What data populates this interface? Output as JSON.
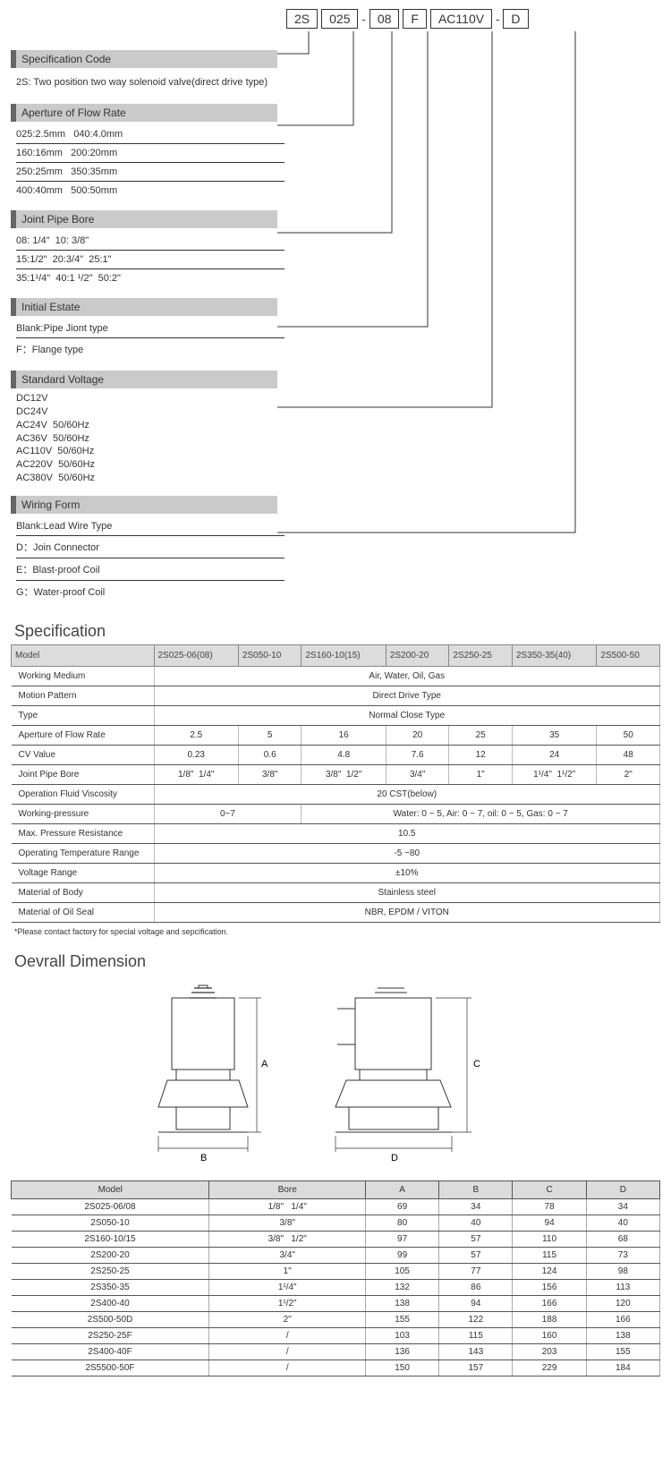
{
  "code_strip": {
    "b1": "2S",
    "b2": "025",
    "b3": "08",
    "b4": "F",
    "b5": "AC110V",
    "b6": "D",
    "sep": "-"
  },
  "sections": {
    "spec_code": {
      "title": "Specification Code",
      "line": "2S: Two position two way solenoid valve(direct drive type)"
    },
    "aperture": {
      "title": "Aperture of Flow Rate",
      "r1": "025:2.5mm   040:4.0mm",
      "r2": "160:16mm   200:20mm",
      "r3": "250:25mm   350:35mm",
      "r4": "400:40mm   500:50mm"
    },
    "joint": {
      "title": "Joint Pipe Bore",
      "r1": "08: 1/4\"  10: 3/8\"",
      "r2": "15:1/2\"  20:3/4\"  25:1\"",
      "r3": "35:1¹/4\"  40:1 ¹/2\"  50:2\""
    },
    "initial": {
      "title": "Initial Estate",
      "r1": "Blank:Pipe Jiont type",
      "r2": "F：Flange type"
    },
    "voltage": {
      "title": "Standard Voltage",
      "l1": "DC12V",
      "l2": "DC24V",
      "l3": "AC24V  50/60Hz",
      "l4": "AC36V  50/60Hz",
      "l5": "AC110V  50/60Hz",
      "l6": "AC220V  50/60Hz",
      "l7": "AC380V  50/60Hz"
    },
    "wiring": {
      "title": "Wiring Form",
      "r1": "Blank:Lead Wire Type",
      "r2": "D：Join Connector",
      "r3": "E：Blast-proof Coil",
      "r4": "G：Water-proof Coil"
    }
  },
  "spec_title": "Specification",
  "spec_table": {
    "hdr_model": "Model",
    "models": [
      "2S025-06(08)",
      "2S050-10",
      "2S160-10(15)",
      "2S200-20",
      "2S250-25",
      "2S350-35(40)",
      "2S500-50"
    ],
    "rows": {
      "wm": {
        "lbl": "Working Medium",
        "val": "Air, Water, Oil, Gas"
      },
      "mp": {
        "lbl": "Motion Pattern",
        "val": "Direct  Drive Type"
      },
      "ty": {
        "lbl": "Type",
        "val": "Normal Close Type"
      },
      "af": {
        "lbl": "Aperture of Flow Rate",
        "v": [
          "2.5",
          "5",
          "16",
          "20",
          "25",
          "35",
          "50"
        ]
      },
      "cv": {
        "lbl": "CV  Value",
        "v": [
          "0.23",
          "0.6",
          "4.8",
          "7.6",
          "12",
          "24",
          "48"
        ]
      },
      "jp": {
        "lbl": "Joint Pipe Bore",
        "v": [
          "1/8\"  1/4\"",
          "3/8\"",
          "3/8\"  1/2\"",
          "3/4\"",
          "1\"",
          "1¹/4\"  1¹/2\"",
          "2\""
        ]
      },
      "ofv": {
        "lbl": "Operation Fluid Viscosity",
        "val": "20  CST(below)"
      },
      "wp": {
        "lbl": "Working-pressure",
        "left": "0~7",
        "right": "Water: 0 ~ 5, Air: 0 ~ 7, oil: 0 ~ 5, Gas: 0 ~ 7"
      },
      "mpr": {
        "lbl": "Max. Pressure Resistance",
        "val": "10.5"
      },
      "otr": {
        "lbl": "Operating Temperature Range",
        "val": "-5 ~80"
      },
      "vr": {
        "lbl": "Voltage Range",
        "val": "±10%"
      },
      "mb": {
        "lbl": "Material of Body",
        "val": "Stainless steel"
      },
      "ms": {
        "lbl": "Material of Oil Seal",
        "val": "NBR,   EPDM / VITON"
      }
    }
  },
  "footnote": "*Please contact factory for special voltage and sepcification.",
  "dim_title": "Oevrall Dimension",
  "dim_labels": {
    "A": "A",
    "B": "B",
    "C": "C",
    "D": "D"
  },
  "dim_table": {
    "hdr": {
      "model": "Model",
      "bore": "Bore",
      "A": "A",
      "B": "B",
      "C": "C",
      "D": "D"
    },
    "rows": [
      {
        "m": "2S025-06/08",
        "b": "1/8\"   1/4\"",
        "A": "69",
        "B": "34",
        "C": "78",
        "D": "34"
      },
      {
        "m": "2S050-10",
        "b": "3/8\"",
        "A": "80",
        "B": "40",
        "C": "94",
        "D": "40"
      },
      {
        "m": "2S160-10/15",
        "b": "3/8\"   1/2\"",
        "A": "97",
        "B": "57",
        "C": "110",
        "D": "68"
      },
      {
        "m": "2S200-20",
        "b": "3/4\"",
        "A": "99",
        "B": "57",
        "C": "115",
        "D": "73"
      },
      {
        "m": "2S250-25",
        "b": "1\"",
        "A": "105",
        "B": "77",
        "C": "124",
        "D": "98"
      },
      {
        "m": "2S350-35",
        "b": "1¹/4\"",
        "A": "132",
        "B": "86",
        "C": "156",
        "D": "113"
      },
      {
        "m": "2S400-40",
        "b": "1¹/2\"",
        "A": "138",
        "B": "94",
        "C": "166",
        "D": "120"
      },
      {
        "m": "2S500-50D",
        "b": "2\"",
        "A": "155",
        "B": "122",
        "C": "188",
        "D": "166"
      },
      {
        "m": "2S250-25F",
        "b": "/",
        "A": "103",
        "B": "115",
        "C": "160",
        "D": "138"
      },
      {
        "m": "2S400-40F",
        "b": "/",
        "A": "136",
        "B": "143",
        "C": "203",
        "D": "155"
      },
      {
        "m": "2S5500-50F",
        "b": "/",
        "A": "150",
        "B": "157",
        "C": "229",
        "D": "184"
      }
    ]
  },
  "colors": {
    "hdr_bg": "#cacaca",
    "th_bg": "#dcdcdc",
    "line": "#333333"
  }
}
